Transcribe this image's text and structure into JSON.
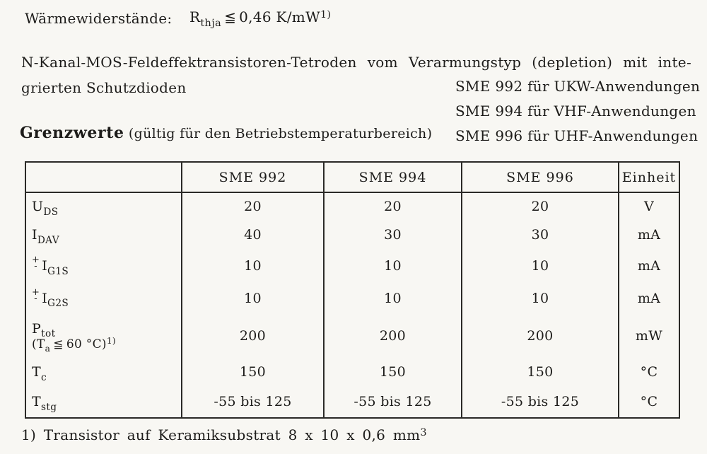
{
  "colors": {
    "bg": "#f8f7f3",
    "ink": "#1d1c1a",
    "border": "#2b2a27"
  },
  "thermal_line": {
    "label": "Wärmewiderstände:",
    "symbol": "R",
    "symbol_sub": "thja",
    "relation": "≦",
    "value": "0,46",
    "unit": "K/mW",
    "footnote_ref": "1)"
  },
  "intro": {
    "line1": "N-Kanal-MOS-Feldeffektransistoren-Tetroden vom Verarmungstyp (depletion) mit inte-",
    "line2": "grierten Schutzdioden",
    "variants": [
      "SME 992 für UKW-Anwendungen",
      "SME 994 für VHF-Anwendungen",
      "SME 996 für UHF-Anwendungen"
    ]
  },
  "limits_heading": {
    "title": "Grenzwerte",
    "subtitle": "(gültig für den Betriebstemperaturbereich)"
  },
  "table": {
    "headers": [
      "",
      "SME 992",
      "SME 994",
      "SME 996",
      "Einheit"
    ],
    "rows": [
      {
        "sym": "U",
        "sub": "DS",
        "values": [
          "20",
          "20",
          "20"
        ],
        "unit": "V"
      },
      {
        "sym": "I",
        "sub": "DAV",
        "values": [
          "40",
          "30",
          "30"
        ],
        "unit": "mA"
      },
      {
        "sign_top": "+",
        "sign_bottom": "-",
        "sym": "I",
        "sub": "G1S",
        "values": [
          "10",
          "10",
          "10"
        ],
        "unit": "mA"
      },
      {
        "sign_top": "+",
        "sign_bottom": "-",
        "sym": "I",
        "sub": "G2S",
        "values": [
          "10",
          "10",
          "10"
        ],
        "unit": "mA"
      },
      {
        "sym": "P",
        "sub": "tot",
        "cond_pre": "(T",
        "cond_sub": "a",
        "cond_rel": "≦",
        "cond_value": "60",
        "cond_unit": "°C)",
        "cond_sup": "1)",
        "values": [
          "200",
          "200",
          "200"
        ],
        "unit": "mW"
      },
      {
        "sym": "T",
        "sub": "c",
        "values": [
          "150",
          "150",
          "150"
        ],
        "unit": "°C"
      },
      {
        "sym": "T",
        "sub": "stg",
        "values": [
          "-55 bis 125",
          "-55 bis 125",
          "-55 bis 125"
        ],
        "unit": "°C"
      }
    ]
  },
  "footnote": {
    "text": "1) Transistor auf Keramiksubstrat 8 x 10 x 0,6 mm",
    "sup": "3"
  }
}
